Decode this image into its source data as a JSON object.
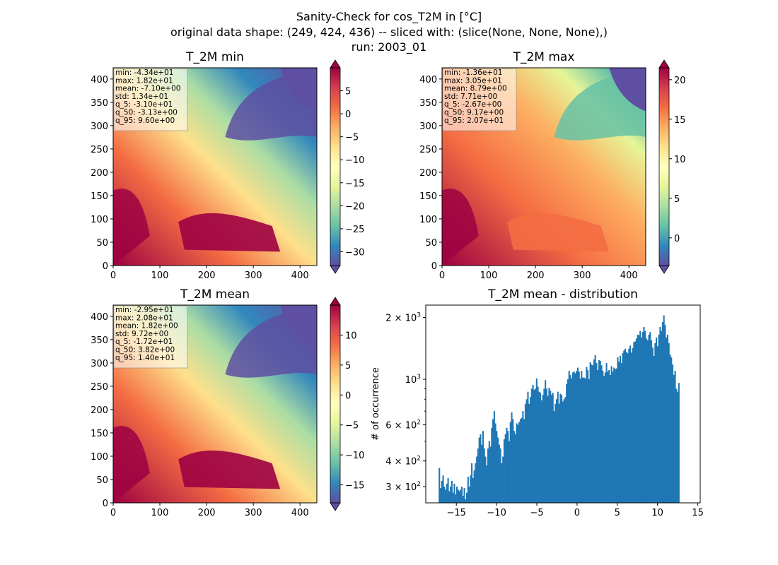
{
  "figure": {
    "title_lines": [
      "Sanity-Check for cos_T2M in [°C]",
      "original data shape: (249, 424, 436) -- sliced with: (slice(None, None, None),)",
      "run: 2003_01"
    ]
  },
  "colors": {
    "histogram": "#1f77b4",
    "colormap": "Spectral_r",
    "colormap_stops": [
      "#5e4fa2",
      "#3288bd",
      "#66c2a5",
      "#abdda4",
      "#e6f598",
      "#ffffbf",
      "#fee08b",
      "#fdae61",
      "#f46d43",
      "#d53e4f",
      "#9e0142"
    ]
  },
  "chart_data": [
    {
      "type": "heatmap",
      "title": "T_2M min",
      "xticks": [
        "0",
        "100",
        "200",
        "300",
        "400"
      ],
      "yticks": [
        "0",
        "50",
        "100",
        "150",
        "200",
        "250",
        "300",
        "350",
        "400"
      ],
      "xlim": [
        0,
        436
      ],
      "ylim": [
        0,
        424
      ],
      "colorbar": {
        "range": [
          -33,
          10
        ],
        "ticks": [
          "5",
          "0",
          "−5",
          "−10",
          "−15",
          "−20",
          "−25",
          "−30"
        ],
        "tick_values": [
          5,
          0,
          -5,
          -10,
          -15,
          -20,
          -25,
          -30
        ],
        "extend": "both"
      },
      "stats": [
        "min: -4.34e+01",
        "max: 1.82e+01",
        "mean: -7.10e+00",
        "std: 1.34e+01",
        "q_5: -3.10e+01",
        "q_50: -3.13e+00",
        "q_95: 9.60e+00"
      ],
      "stats_box": "top-left"
    },
    {
      "type": "heatmap",
      "title": "T_2M max",
      "xticks": [
        "0",
        "100",
        "200",
        "300",
        "400"
      ],
      "yticks": [
        "0",
        "50",
        "100",
        "150",
        "200",
        "250",
        "300",
        "350",
        "400"
      ],
      "xlim": [
        0,
        436
      ],
      "ylim": [
        0,
        424
      ],
      "colorbar": {
        "range": [
          -3.5,
          21.5
        ],
        "ticks": [
          "20",
          "15",
          "10",
          "5",
          "0"
        ],
        "tick_values": [
          20,
          15,
          10,
          5,
          0
        ],
        "extend": "both"
      },
      "stats": [
        "min: -1.36e+01",
        "max: 3.05e+01",
        "mean: 8.79e+00",
        "std: 7.71e+00",
        "q_5: -2.67e+00",
        "q_50: 9.17e+00",
        "q_95: 2.07e+01"
      ],
      "stats_box": "top-left"
    },
    {
      "type": "heatmap",
      "title": "T_2M mean",
      "xticks": [
        "0",
        "100",
        "200",
        "300",
        "400"
      ],
      "yticks": [
        "0",
        "50",
        "100",
        "150",
        "200",
        "250",
        "300",
        "350",
        "400"
      ],
      "xlim": [
        0,
        436
      ],
      "ylim": [
        0,
        424
      ],
      "colorbar": {
        "range": [
          -18,
          15
        ],
        "ticks": [
          "10",
          "5",
          "0",
          "−5",
          "−10",
          "−15"
        ],
        "tick_values": [
          10,
          5,
          0,
          -5,
          -10,
          -15
        ],
        "extend": "both"
      },
      "stats": [
        "min: -2.95e+01",
        "max: 2.08e+01",
        "mean: 1.82e+00",
        "std: 9.72e+00",
        "q_5: -1.72e+01",
        "q_50: 3.82e+00",
        "q_95: 1.40e+01"
      ],
      "stats_box": "top-left"
    },
    {
      "type": "bar",
      "title": "T_2M mean - distribution",
      "xlabel": "",
      "ylabel": "# of occurrence",
      "yscale": "log",
      "xlim": [
        -18.8,
        15.3
      ],
      "ylim": [
        250,
        2300
      ],
      "xticks": [
        -15,
        -10,
        -5,
        0,
        5,
        10,
        15
      ],
      "xtick_labels": [
        "−15",
        "−10",
        "−5",
        "0",
        "5",
        "10",
        "15"
      ],
      "yticks": [
        300,
        400,
        600,
        1000,
        2000
      ],
      "ytick_labels": [
        {
          "mantissa": "3",
          "base": "× 10",
          "exp": "2"
        },
        {
          "mantissa": "4",
          "base": "× 10",
          "exp": "2"
        },
        {
          "mantissa": "6",
          "base": "× 10",
          "exp": "2"
        },
        {
          "mantissa": "",
          "base": "10",
          "exp": "3"
        },
        {
          "mantissa": "2",
          "base": "× 10",
          "exp": "3"
        }
      ],
      "bin_start": -17.2,
      "bin_width": 0.155,
      "values": [
        370,
        295,
        320,
        340,
        300,
        290,
        310,
        330,
        285,
        300,
        320,
        280,
        310,
        275,
        300,
        290,
        285,
        290,
        300,
        270,
        295,
        260,
        280,
        335,
        300,
        340,
        390,
        330,
        360,
        390,
        420,
        460,
        520,
        540,
        480,
        560,
        460,
        420,
        380,
        460,
        500,
        470,
        580,
        640,
        700,
        610,
        560,
        520,
        480,
        460,
        390,
        420,
        510,
        540,
        580,
        560,
        500,
        620,
        690,
        640,
        560,
        540,
        610,
        600,
        620,
        640,
        650,
        700,
        640,
        760,
        800,
        870,
        760,
        820,
        900,
        940,
        890,
        900,
        1010,
        920,
        870,
        860,
        790,
        840,
        900,
        990,
        900,
        830,
        910,
        880,
        840,
        860,
        700,
        760,
        800,
        870,
        760,
        850,
        840,
        780,
        800,
        820,
        950,
        1000,
        1100,
        1050,
        1010,
        1080,
        1090,
        1070,
        1100,
        1140,
        1090,
        1010,
        1100,
        1020,
        1020,
        1010,
        1150,
        1110,
        1000,
        1210,
        1180,
        1170,
        1250,
        1310,
        1200,
        1110,
        1240,
        1230,
        1170,
        1100,
        1040,
        1080,
        1200,
        1090,
        1110,
        1050,
        1160,
        1090,
        1140,
        1120,
        1130,
        1280,
        1220,
        1300,
        1200,
        1340,
        1380,
        1410,
        1360,
        1340,
        1410,
        1460,
        1350,
        1420,
        1520,
        1530,
        1580,
        1650,
        1640,
        1720,
        1600,
        1700,
        1800,
        1720,
        1580,
        1550,
        1650,
        1700,
        1550,
        1430,
        1300,
        1500,
        1600,
        1450,
        1650,
        1800,
        1720,
        1900,
        2050,
        1840,
        1600,
        1650,
        1500,
        1320,
        1280,
        1180,
        1050,
        1100,
        900,
        870,
        960
      ]
    }
  ]
}
